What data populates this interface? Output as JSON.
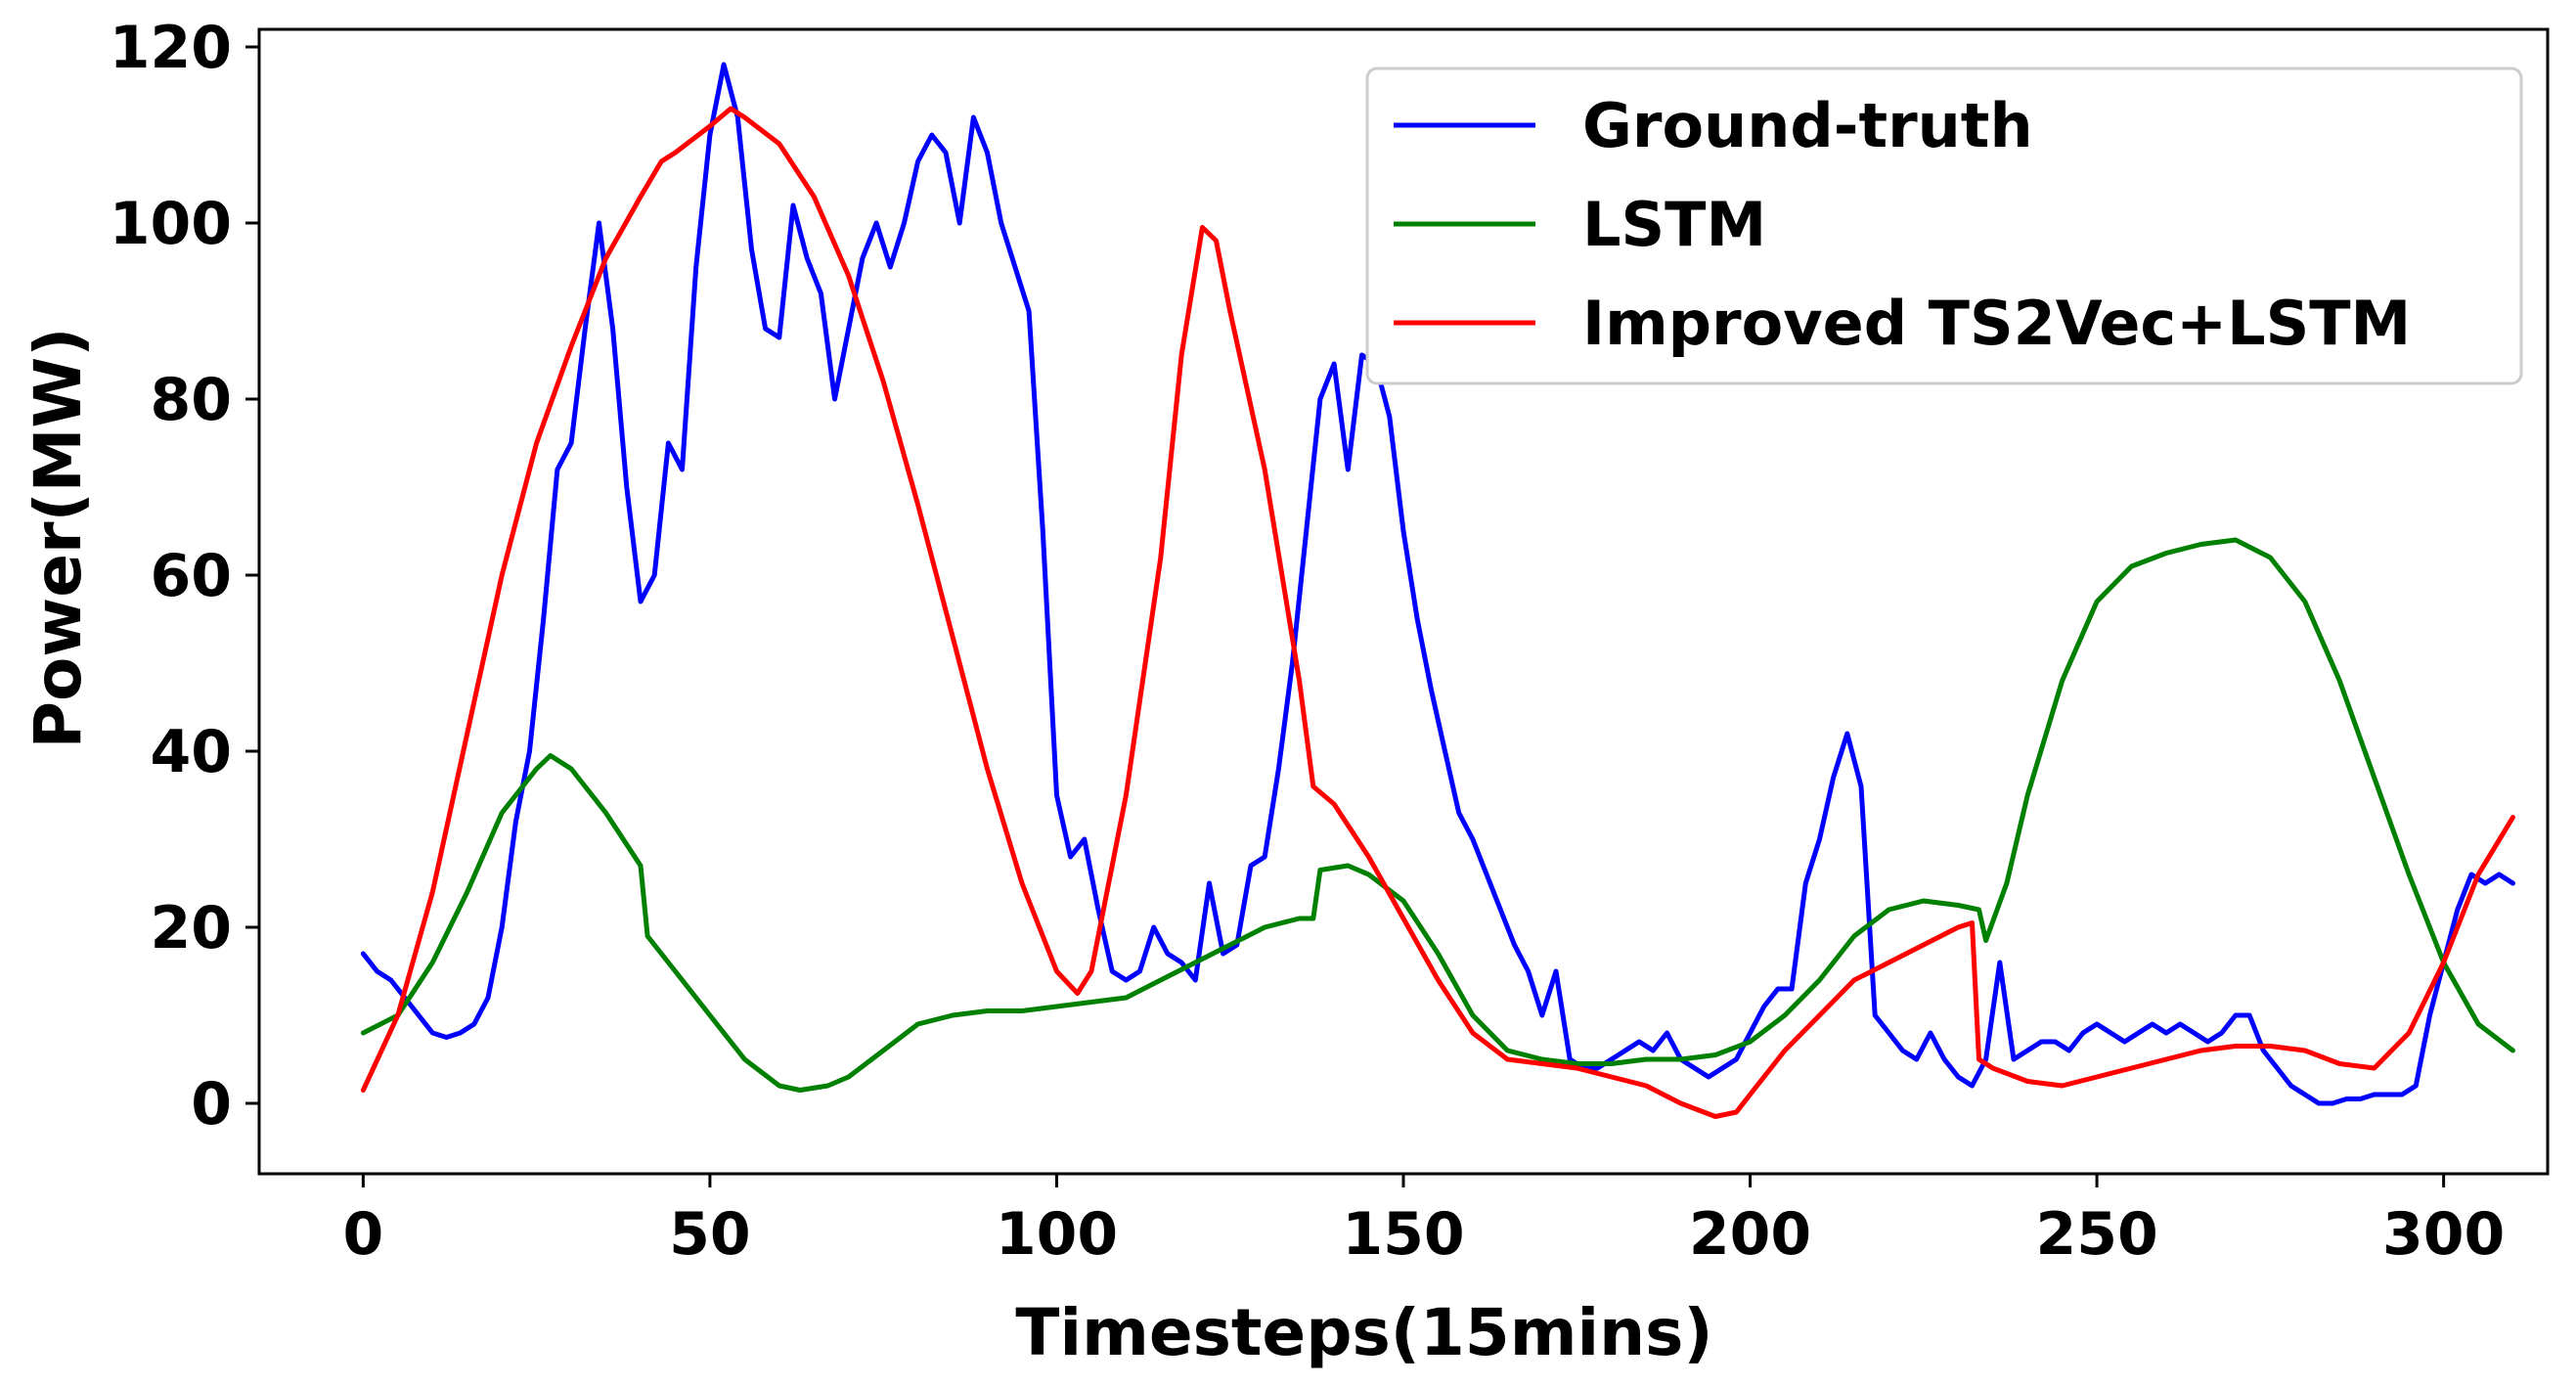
{
  "chart_data": {
    "type": "line",
    "title": "",
    "xlabel": "Timesteps(15mins)",
    "ylabel": "Power(MW)",
    "xlim": [
      -15,
      315
    ],
    "ylim": [
      -8,
      122
    ],
    "xticks": [
      0,
      50,
      100,
      150,
      200,
      250,
      300
    ],
    "yticks": [
      0,
      20,
      40,
      60,
      80,
      100,
      120
    ],
    "legend_position": "top-right",
    "series": [
      {
        "name": "Ground-truth",
        "color": "#0000ff",
        "points": [
          [
            0,
            17
          ],
          [
            2,
            15
          ],
          [
            4,
            14
          ],
          [
            6,
            12
          ],
          [
            8,
            10
          ],
          [
            10,
            8
          ],
          [
            12,
            7.5
          ],
          [
            14,
            8
          ],
          [
            16,
            9
          ],
          [
            18,
            12
          ],
          [
            20,
            20
          ],
          [
            22,
            32
          ],
          [
            24,
            40
          ],
          [
            26,
            55
          ],
          [
            28,
            72
          ],
          [
            30,
            75
          ],
          [
            32,
            88
          ],
          [
            34,
            100
          ],
          [
            36,
            88
          ],
          [
            38,
            70
          ],
          [
            40,
            57
          ],
          [
            42,
            60
          ],
          [
            44,
            75
          ],
          [
            46,
            72
          ],
          [
            48,
            95
          ],
          [
            50,
            110
          ],
          [
            52,
            118
          ],
          [
            54,
            112
          ],
          [
            56,
            97
          ],
          [
            58,
            88
          ],
          [
            60,
            87
          ],
          [
            62,
            102
          ],
          [
            64,
            96
          ],
          [
            66,
            92
          ],
          [
            68,
            80
          ],
          [
            70,
            88
          ],
          [
            72,
            96
          ],
          [
            74,
            100
          ],
          [
            76,
            95
          ],
          [
            78,
            100
          ],
          [
            80,
            107
          ],
          [
            82,
            110
          ],
          [
            84,
            108
          ],
          [
            86,
            100
          ],
          [
            88,
            112
          ],
          [
            90,
            108
          ],
          [
            92,
            100
          ],
          [
            94,
            95
          ],
          [
            96,
            90
          ],
          [
            98,
            65
          ],
          [
            100,
            35
          ],
          [
            102,
            28
          ],
          [
            104,
            30
          ],
          [
            106,
            22
          ],
          [
            108,
            15
          ],
          [
            110,
            14
          ],
          [
            112,
            15
          ],
          [
            114,
            20
          ],
          [
            116,
            17
          ],
          [
            118,
            16
          ],
          [
            120,
            14
          ],
          [
            122,
            25
          ],
          [
            124,
            17
          ],
          [
            126,
            18
          ],
          [
            128,
            27
          ],
          [
            130,
            28
          ],
          [
            132,
            38
          ],
          [
            134,
            50
          ],
          [
            136,
            65
          ],
          [
            138,
            80
          ],
          [
            140,
            84
          ],
          [
            142,
            72
          ],
          [
            144,
            85
          ],
          [
            146,
            84
          ],
          [
            148,
            78
          ],
          [
            150,
            65
          ],
          [
            152,
            55
          ],
          [
            154,
            47
          ],
          [
            156,
            40
          ],
          [
            158,
            33
          ],
          [
            160,
            30
          ],
          [
            162,
            26
          ],
          [
            164,
            22
          ],
          [
            166,
            18
          ],
          [
            168,
            15
          ],
          [
            170,
            10
          ],
          [
            172,
            15
          ],
          [
            174,
            5
          ],
          [
            176,
            4
          ],
          [
            178,
            4
          ],
          [
            180,
            5
          ],
          [
            182,
            6
          ],
          [
            184,
            7
          ],
          [
            186,
            6
          ],
          [
            188,
            8
          ],
          [
            190,
            5
          ],
          [
            192,
            4
          ],
          [
            194,
            3
          ],
          [
            196,
            4
          ],
          [
            198,
            5
          ],
          [
            200,
            8
          ],
          [
            202,
            11
          ],
          [
            204,
            13
          ],
          [
            206,
            13
          ],
          [
            208,
            25
          ],
          [
            210,
            30
          ],
          [
            212,
            37
          ],
          [
            214,
            42
          ],
          [
            216,
            36
          ],
          [
            218,
            10
          ],
          [
            220,
            8
          ],
          [
            222,
            6
          ],
          [
            224,
            5
          ],
          [
            226,
            8
          ],
          [
            228,
            5
          ],
          [
            230,
            3
          ],
          [
            232,
            2
          ],
          [
            234,
            5
          ],
          [
            236,
            16
          ],
          [
            238,
            5
          ],
          [
            240,
            6
          ],
          [
            242,
            7
          ],
          [
            244,
            7
          ],
          [
            246,
            6
          ],
          [
            248,
            8
          ],
          [
            250,
            9
          ],
          [
            252,
            8
          ],
          [
            254,
            7
          ],
          [
            256,
            8
          ],
          [
            258,
            9
          ],
          [
            260,
            8
          ],
          [
            262,
            9
          ],
          [
            264,
            8
          ],
          [
            266,
            7
          ],
          [
            268,
            8
          ],
          [
            270,
            10
          ],
          [
            272,
            10
          ],
          [
            274,
            6
          ],
          [
            276,
            4
          ],
          [
            278,
            2
          ],
          [
            280,
            1
          ],
          [
            282,
            0
          ],
          [
            284,
            0
          ],
          [
            286,
            0.5
          ],
          [
            288,
            0.5
          ],
          [
            290,
            1
          ],
          [
            292,
            1
          ],
          [
            294,
            1
          ],
          [
            296,
            2
          ],
          [
            298,
            10
          ],
          [
            300,
            16
          ],
          [
            302,
            22
          ],
          [
            304,
            26
          ],
          [
            306,
            25
          ],
          [
            308,
            26
          ],
          [
            310,
            25
          ]
        ]
      },
      {
        "name": "LSTM",
        "color": "#008000",
        "points": [
          [
            0,
            8
          ],
          [
            5,
            10
          ],
          [
            10,
            16
          ],
          [
            15,
            24
          ],
          [
            20,
            33
          ],
          [
            25,
            38
          ],
          [
            27,
            39.5
          ],
          [
            30,
            38
          ],
          [
            35,
            33
          ],
          [
            40,
            27
          ],
          [
            41,
            19
          ],
          [
            45,
            15
          ],
          [
            50,
            10
          ],
          [
            55,
            5
          ],
          [
            60,
            2
          ],
          [
            63,
            1.5
          ],
          [
            67,
            2
          ],
          [
            70,
            3
          ],
          [
            75,
            6
          ],
          [
            80,
            9
          ],
          [
            85,
            10
          ],
          [
            90,
            10.5
          ],
          [
            95,
            10.5
          ],
          [
            100,
            11
          ],
          [
            105,
            11.5
          ],
          [
            110,
            12
          ],
          [
            115,
            14
          ],
          [
            120,
            16
          ],
          [
            125,
            18
          ],
          [
            130,
            20
          ],
          [
            135,
            21
          ],
          [
            137,
            21
          ],
          [
            138,
            26.5
          ],
          [
            142,
            27
          ],
          [
            145,
            26
          ],
          [
            150,
            23
          ],
          [
            155,
            17
          ],
          [
            160,
            10
          ],
          [
            165,
            6
          ],
          [
            170,
            5
          ],
          [
            175,
            4.5
          ],
          [
            180,
            4.5
          ],
          [
            185,
            5
          ],
          [
            190,
            5
          ],
          [
            195,
            5.5
          ],
          [
            200,
            7
          ],
          [
            205,
            10
          ],
          [
            210,
            14
          ],
          [
            215,
            19
          ],
          [
            220,
            22
          ],
          [
            225,
            23
          ],
          [
            230,
            22.5
          ],
          [
            233,
            22
          ],
          [
            234,
            18.5
          ],
          [
            237,
            25
          ],
          [
            240,
            35
          ],
          [
            245,
            48
          ],
          [
            250,
            57
          ],
          [
            255,
            61
          ],
          [
            260,
            62.5
          ],
          [
            265,
            63.5
          ],
          [
            270,
            64
          ],
          [
            275,
            62
          ],
          [
            280,
            57
          ],
          [
            285,
            48
          ],
          [
            290,
            37
          ],
          [
            295,
            26
          ],
          [
            300,
            16
          ],
          [
            305,
            9
          ],
          [
            310,
            6
          ]
        ]
      },
      {
        "name": "Improved TS2Vec+LSTM",
        "color": "#ff0000",
        "points": [
          [
            0,
            1.5
          ],
          [
            5,
            10
          ],
          [
            10,
            24
          ],
          [
            15,
            42
          ],
          [
            20,
            60
          ],
          [
            25,
            75
          ],
          [
            30,
            86
          ],
          [
            35,
            96
          ],
          [
            40,
            103
          ],
          [
            43,
            107
          ],
          [
            45,
            108
          ],
          [
            50,
            111
          ],
          [
            53,
            113
          ],
          [
            55,
            112
          ],
          [
            60,
            109
          ],
          [
            65,
            103
          ],
          [
            70,
            94
          ],
          [
            75,
            82
          ],
          [
            80,
            68
          ],
          [
            85,
            53
          ],
          [
            90,
            38
          ],
          [
            95,
            25
          ],
          [
            100,
            15
          ],
          [
            103,
            12.5
          ],
          [
            105,
            15
          ],
          [
            110,
            35
          ],
          [
            115,
            62
          ],
          [
            118,
            85
          ],
          [
            121,
            99.5
          ],
          [
            123,
            98
          ],
          [
            125,
            90
          ],
          [
            130,
            72
          ],
          [
            135,
            48
          ],
          [
            137,
            36
          ],
          [
            140,
            34
          ],
          [
            145,
            28
          ],
          [
            150,
            21
          ],
          [
            155,
            14
          ],
          [
            160,
            8
          ],
          [
            165,
            5
          ],
          [
            170,
            4.5
          ],
          [
            175,
            4
          ],
          [
            180,
            3
          ],
          [
            185,
            2
          ],
          [
            190,
            0
          ],
          [
            195,
            -1.5
          ],
          [
            198,
            -1
          ],
          [
            200,
            1
          ],
          [
            205,
            6
          ],
          [
            210,
            10
          ],
          [
            215,
            14
          ],
          [
            220,
            16
          ],
          [
            225,
            18
          ],
          [
            230,
            20
          ],
          [
            232,
            20.5
          ],
          [
            233,
            5
          ],
          [
            235,
            4
          ],
          [
            240,
            2.5
          ],
          [
            245,
            2
          ],
          [
            250,
            3
          ],
          [
            255,
            4
          ],
          [
            260,
            5
          ],
          [
            265,
            6
          ],
          [
            270,
            6.5
          ],
          [
            275,
            6.5
          ],
          [
            280,
            6
          ],
          [
            285,
            4.5
          ],
          [
            290,
            4
          ],
          [
            295,
            8
          ],
          [
            300,
            16
          ],
          [
            305,
            26
          ],
          [
            310,
            32.5
          ]
        ]
      }
    ]
  }
}
